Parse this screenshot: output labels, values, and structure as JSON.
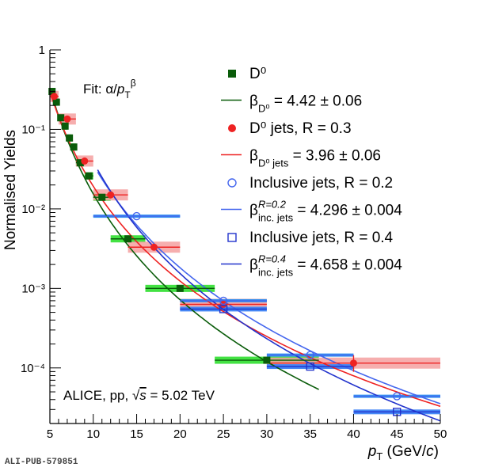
{
  "footer": {
    "pub_id": "ALI-PUB-579851"
  },
  "colors": {
    "d0": "#0a5c0a",
    "d0_sys": "#22dd22",
    "d0jet": "#ee2222",
    "d0jet_sys": "#f4a0a0",
    "inc02": "#4466ee",
    "inc02_sys": "#2a8cf0",
    "inc04": "#2233cc",
    "inc04_sys": "#3b82f6"
  },
  "chart_data": {
    "type": "scatter",
    "xlabel": "p_T (GeV/c)",
    "ylabel": "Normalised Yields",
    "xlim": [
      5,
      50
    ],
    "ylim": [
      2e-05,
      1
    ],
    "yscale": "log",
    "grid": false,
    "legend_placement": "top-right",
    "fit_label": "Fit: α/p_T^β",
    "annotation": "ALICE, pp, √s = 5.02 TeV",
    "x_ticks": [
      5,
      10,
      15,
      20,
      25,
      30,
      35,
      40,
      45,
      50
    ],
    "y_ticks": [
      {
        "value": 1,
        "label": "1"
      },
      {
        "value": 0.1,
        "label": "10⁻¹"
      },
      {
        "value": 0.01,
        "label": "10⁻²"
      },
      {
        "value": 0.001,
        "label": "10⁻³"
      },
      {
        "value": 0.0001,
        "label": "10⁻⁴"
      }
    ],
    "legend": [
      {
        "id": "d0",
        "kind": "marker",
        "marker": "square-filled",
        "text": "D⁰"
      },
      {
        "id": "d0_fit",
        "kind": "line",
        "color_key": "d0",
        "text_main": "β",
        "text_sub": "D⁰",
        "text_sup": "",
        "text_rest": " = 4.42 ± 0.06"
      },
      {
        "id": "d0jet",
        "kind": "marker",
        "marker": "circle-filled",
        "text": "D⁰ jets, R = 0.3"
      },
      {
        "id": "d0jet_fit",
        "kind": "line",
        "color_key": "d0jet",
        "text_main": "β",
        "text_sub": "D⁰ jets",
        "text_sup": "",
        "text_rest": " = 3.96 ± 0.06"
      },
      {
        "id": "inc02",
        "kind": "marker",
        "marker": "circle-open",
        "text": "Inclusive jets, R = 0.2"
      },
      {
        "id": "inc02_fit",
        "kind": "line",
        "color_key": "inc02",
        "text_main": "β",
        "text_sub": "inc. jets",
        "text_sup": "R=0.2",
        "text_rest": " = 4.296 ± 0.004"
      },
      {
        "id": "inc04",
        "kind": "marker",
        "marker": "square-open",
        "text": "Inclusive jets, R = 0.4"
      },
      {
        "id": "inc04_fit",
        "kind": "line",
        "color_key": "inc04",
        "text_main": "β",
        "text_sub": "inc. jets",
        "text_sup": "R=0.4",
        "text_rest": " = 4.658 ± 0.004"
      }
    ],
    "series": [
      {
        "id": "d0",
        "marker": "square-filled",
        "points": [
          {
            "x": 5.25,
            "y": 0.3,
            "xlo": 5,
            "xhi": 5.5
          },
          {
            "x": 5.75,
            "y": 0.22,
            "xlo": 5.5,
            "xhi": 6
          },
          {
            "x": 6.25,
            "y": 0.14,
            "xlo": 6,
            "xhi": 6.5
          },
          {
            "x": 6.75,
            "y": 0.11,
            "xlo": 6.5,
            "xhi": 7
          },
          {
            "x": 7.25,
            "y": 0.078,
            "xlo": 7,
            "xhi": 7.5
          },
          {
            "x": 7.75,
            "y": 0.06,
            "xlo": 7.5,
            "xhi": 8
          },
          {
            "x": 8.5,
            "y": 0.038,
            "xlo": 8,
            "xhi": 9
          },
          {
            "x": 9.5,
            "y": 0.026,
            "xlo": 9,
            "xhi": 10
          },
          {
            "x": 11,
            "y": 0.014,
            "xlo": 10,
            "xhi": 12
          },
          {
            "x": 14,
            "y": 0.0042,
            "xlo": 12,
            "xhi": 16
          },
          {
            "x": 20,
            "y": 0.001,
            "xlo": 16,
            "xhi": 24
          },
          {
            "x": 30,
            "y": 0.000125,
            "xlo": 24,
            "xhi": 36
          }
        ]
      },
      {
        "id": "d0jet",
        "marker": "circle-filled",
        "points": [
          {
            "x": 5.5,
            "y": 0.26,
            "xlo": 5,
            "xhi": 6
          },
          {
            "x": 7,
            "y": 0.135,
            "xlo": 6,
            "xhi": 8
          },
          {
            "x": 9,
            "y": 0.04,
            "xlo": 8,
            "xhi": 10
          },
          {
            "x": 12,
            "y": 0.015,
            "xlo": 10,
            "xhi": 14
          },
          {
            "x": 17,
            "y": 0.0033,
            "xlo": 14,
            "xhi": 20
          },
          {
            "x": 25,
            "y": 0.00063,
            "xlo": 20,
            "xhi": 30
          },
          {
            "x": 40,
            "y": 0.000115,
            "xlo": 30,
            "xhi": 50
          }
        ]
      },
      {
        "id": "inc02",
        "marker": "circle-open",
        "points": [
          {
            "x": 15,
            "y": 0.0081,
            "xlo": 10,
            "xhi": 20
          },
          {
            "x": 25,
            "y": 0.0007,
            "xlo": 20,
            "xhi": 30
          },
          {
            "x": 35,
            "y": 0.000145,
            "xlo": 30,
            "xhi": 40
          },
          {
            "x": 45,
            "y": 4.4e-05,
            "xlo": 40,
            "xhi": 50
          }
        ]
      },
      {
        "id": "inc04",
        "marker": "square-open",
        "points": [
          {
            "x": 25,
            "y": 0.00055,
            "xlo": 20,
            "xhi": 30
          },
          {
            "x": 35,
            "y": 0.000104,
            "xlo": 30,
            "xhi": 40
          },
          {
            "x": 45,
            "y": 2.8e-05,
            "xlo": 40,
            "xhi": 50
          }
        ]
      }
    ],
    "fits": [
      {
        "id": "d0_fit",
        "color_key": "d0",
        "beta": 4.42,
        "x_range": [
          5,
          36
        ],
        "y_at_xmin": 0.33
      },
      {
        "id": "d0jet_fit",
        "color_key": "d0jet",
        "beta": 3.96,
        "x_range": [
          5,
          50
        ],
        "y_at_xmin": 0.3
      },
      {
        "id": "inc02_fit",
        "color_key": "inc02",
        "beta": 4.296,
        "x_range": [
          10.5,
          50
        ],
        "y_at_xmin": 0.029
      },
      {
        "id": "inc04_fit",
        "color_key": "inc04",
        "beta": 4.658,
        "x_range": [
          10.5,
          50
        ],
        "y_at_xmin": 0.031
      }
    ]
  }
}
